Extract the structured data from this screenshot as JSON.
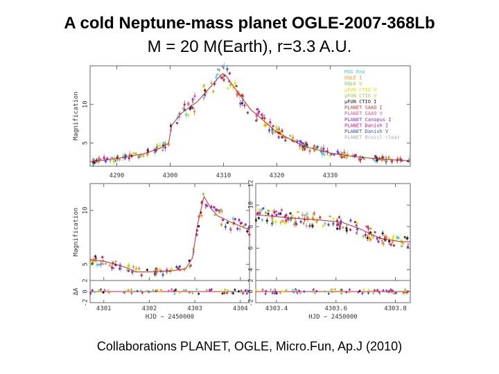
{
  "title": "A cold Neptune-mass planet OGLE-2007-368Lb",
  "subtitle": "M = 20 M(Earth), r=3.3 A.U.",
  "caption": "Collaborations PLANET, OGLE, Micro.Fun, Ap.J (2010)",
  "chart_data": [
    {
      "type": "scatter",
      "panel": "top",
      "ylabel": "Magnification",
      "xlim": [
        4285,
        4345
      ],
      "ylim": [
        2,
        15
      ],
      "xticks": [
        4290,
        4300,
        4310,
        4320,
        4330
      ],
      "xtick_labels": [
        "4290",
        "4300",
        "4310",
        "4320",
        "4330"
      ],
      "yticks": [
        5,
        10
      ],
      "model": {
        "x": [
          4285,
          4290,
          4295,
          4298,
          4299.8,
          4300.2,
          4302,
          4305,
          4308,
          4309.5,
          4310,
          4310.5,
          4312,
          4315,
          4320,
          4325,
          4330,
          4335,
          4340,
          4345
        ],
        "y": [
          2.6,
          3.0,
          3.6,
          4.3,
          5.0,
          7.2,
          8.8,
          10.3,
          12.6,
          13.8,
          14.0,
          13.7,
          12.2,
          9.4,
          6.4,
          4.6,
          3.7,
          3.2,
          2.9,
          2.7
        ]
      },
      "legend": [
        {
          "label": "MOA Red",
          "color": "#4dd0e1"
        },
        {
          "label": "OGLE I",
          "color": "#ff8c1a"
        },
        {
          "label": "OGLE V",
          "color": "#7fd14a"
        },
        {
          "label": "μFUN CTIO H",
          "color": "#e6e600"
        },
        {
          "label": "μFUN CTIO V",
          "color": "#9acd32"
        },
        {
          "label": "μFUN CTIO I",
          "color": "#222222"
        },
        {
          "label": "PLANET SAAO I",
          "color": "#cc3333"
        },
        {
          "label": "PLANET SAAO V",
          "color": "#e0559f"
        },
        {
          "label": "PLANET Canopus I",
          "color": "#8a2be2"
        },
        {
          "label": "PLANET Danish I",
          "color": "#c71585"
        },
        {
          "label": "PLANET Danish V",
          "color": "#3355dd"
        },
        {
          "label": "PLANET Brazil clear",
          "color": "#aaaaaa"
        }
      ]
    },
    {
      "type": "scatter",
      "panel": "bottom-left",
      "ylabel": "Magnification",
      "xlabel": "HJD − 2450000",
      "xlim": [
        4300.7,
        4304.2
      ],
      "ylim": [
        3.5,
        12.5
      ],
      "xticks": [
        4301,
        4302,
        4303,
        4304
      ],
      "xtick_labels": [
        "4301",
        "4302",
        "4303",
        "4304"
      ],
      "yticks": [
        5,
        10
      ],
      "residual_ylabel": "ΔA",
      "residual_ylim": [
        -2,
        2
      ],
      "residual_yticks": [
        -2,
        0,
        2
      ],
      "model": {
        "x": [
          4300.7,
          4301.0,
          4301.5,
          4301.7,
          4302.0,
          4302.5,
          4302.8,
          4302.95,
          4303.05,
          4303.2,
          4303.35,
          4303.5,
          4303.8,
          4304.2
        ],
        "y": [
          5.4,
          5.3,
          4.7,
          4.3,
          4.3,
          4.4,
          4.6,
          5.6,
          8.5,
          11.3,
          10.2,
          9.5,
          8.9,
          8.2
        ]
      }
    },
    {
      "type": "scatter",
      "panel": "bottom-right",
      "xlabel": "HJD − 2450000",
      "xlim": [
        4303.33,
        4303.85
      ],
      "ylim": [
        3.0,
        12.0
      ],
      "xticks": [
        4303.4,
        4303.6,
        4303.8
      ],
      "xtick_labels": [
        "4303.4",
        "4303.6",
        "4303.8"
      ],
      "yticks": [
        4,
        6,
        8,
        10,
        12
      ],
      "residual_ylim": [
        -2,
        2
      ],
      "residual_yticks": [
        -2,
        0,
        2
      ],
      "model": {
        "x": [
          4303.33,
          4303.45,
          4303.55,
          4303.62,
          4303.68,
          4303.75,
          4303.82,
          4303.85
        ],
        "y": [
          9.1,
          8.8,
          8.6,
          8.4,
          7.8,
          6.9,
          6.6,
          6.6
        ]
      }
    }
  ]
}
